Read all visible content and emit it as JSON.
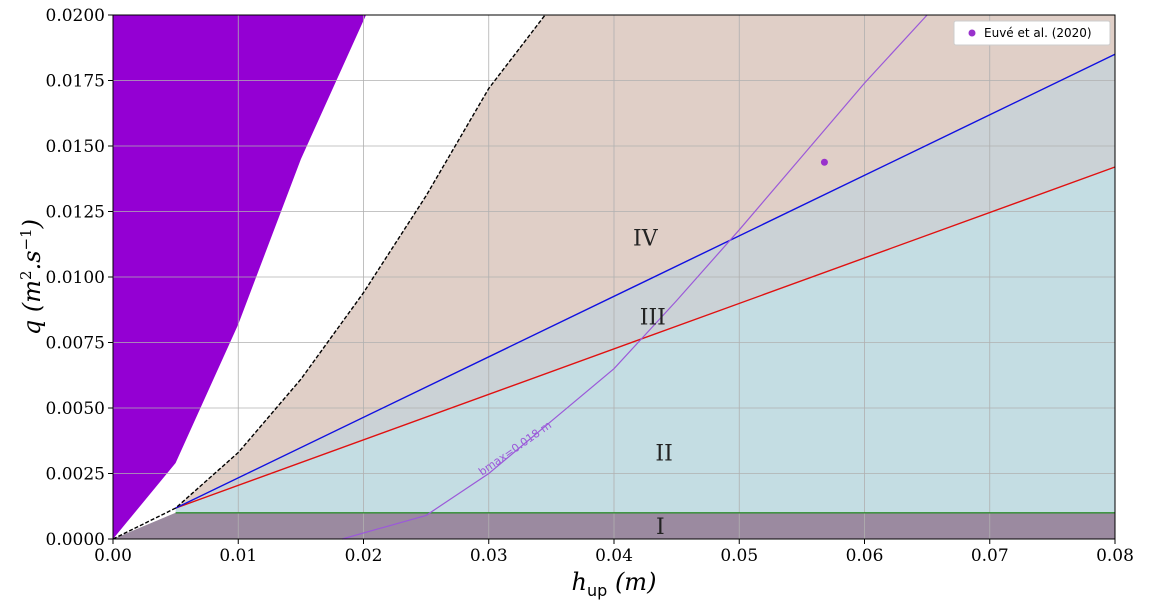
{
  "chart_data": {
    "type": "area",
    "xlabel": "h_up (m)",
    "ylabel": "q (m^2.s^-1)",
    "xlim": [
      0,
      0.08
    ],
    "ylim": [
      0,
      0.02
    ],
    "xticks": [
      "0.00",
      "0.01",
      "0.02",
      "0.03",
      "0.04",
      "0.05",
      "0.06",
      "0.07",
      "0.08"
    ],
    "yticks": [
      "0.0000",
      "0.0025",
      "0.0050",
      "0.0075",
      "0.0100",
      "0.0125",
      "0.0150",
      "0.0175",
      "0.0200"
    ],
    "grid": true,
    "legend_position": "top-right",
    "legend": [
      {
        "label": "Euvé et al. (2020)",
        "color": "#9932cc"
      }
    ],
    "regions": [
      {
        "label": "I",
        "color": "#9b8aa0",
        "x": 0.0437,
        "y": 0.0005
      },
      {
        "label": "II",
        "color": "#c4dde3",
        "x": 0.044,
        "y": 0.0033
      },
      {
        "label": "III",
        "color": "#cbd2d6",
        "x": 0.0431,
        "y": 0.0085
      },
      {
        "label": "IV",
        "color": "#e0cfc7",
        "x": 0.0425,
        "y": 0.0115
      }
    ],
    "series": [
      {
        "name": "green",
        "color": "#2e8b2e",
        "points": [
          [
            0.005,
            0.001
          ],
          [
            0.08,
            0.001
          ]
        ]
      },
      {
        "name": "red",
        "color": "#e01010",
        "points": [
          [
            0.005,
            0.00118
          ],
          [
            0.08,
            0.0142
          ]
        ]
      },
      {
        "name": "blue",
        "color": "#1010e0",
        "points": [
          [
            0.005,
            0.00118
          ],
          [
            0.08,
            0.0185
          ]
        ]
      },
      {
        "name": "black-dashed",
        "color": "#000000",
        "points": [
          [
            0,
            0
          ],
          [
            0.005,
            0.00118
          ],
          [
            0.01,
            0.0033
          ],
          [
            0.015,
            0.0061
          ],
          [
            0.02,
            0.0094
          ],
          [
            0.025,
            0.0131
          ],
          [
            0.03,
            0.0172
          ],
          [
            0.0345,
            0.02
          ]
        ]
      },
      {
        "name": "purple-curve",
        "color": "#9b59d9",
        "points": [
          [
            0.0183,
            0
          ],
          [
            0.025,
            0.0009
          ],
          [
            0.03,
            0.0025
          ],
          [
            0.035,
            0.0045
          ],
          [
            0.04,
            0.0065
          ],
          [
            0.045,
            0.0091
          ],
          [
            0.05,
            0.0118
          ],
          [
            0.055,
            0.0146
          ],
          [
            0.06,
            0.0174
          ],
          [
            0.065,
            0.02
          ]
        ]
      },
      {
        "name": "purple-region-edge",
        "color": "#9400d3",
        "points": [
          [
            0,
            0
          ],
          [
            0.005,
            0.0029
          ],
          [
            0.01,
            0.0082
          ],
          [
            0.015,
            0.0145
          ],
          [
            0.0202,
            0.02
          ]
        ]
      }
    ],
    "scatter": [
      {
        "x": 0.0568,
        "y": 0.01438,
        "color": "#9932cc"
      }
    ],
    "annotations": [
      {
        "text": "bmax=0.018   m",
        "x": 0.0325,
        "y": 0.0033
      }
    ]
  }
}
